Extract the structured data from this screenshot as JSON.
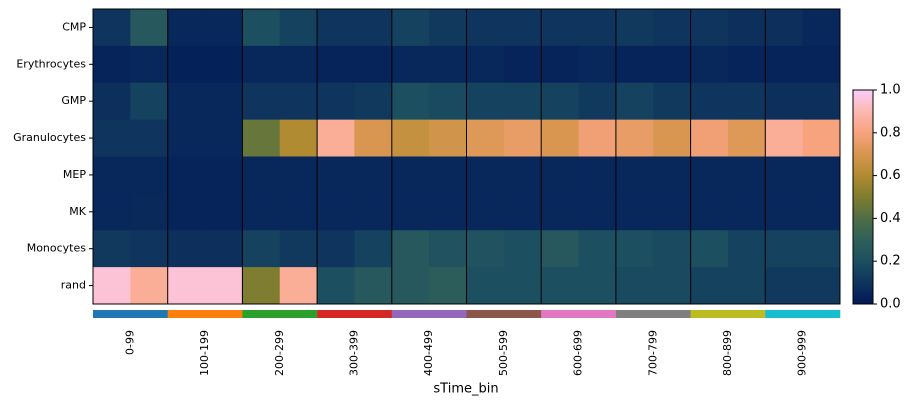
{
  "chart_data": {
    "type": "heatmap",
    "xlabel": "sTime_bin",
    "rows": [
      "CMP",
      "Erythrocytes",
      "GMP",
      "Granulocytes",
      "MEP",
      "MK",
      "Monocytes",
      "rand"
    ],
    "categories": [
      "0-99",
      "100-199",
      "200-299",
      "300-399",
      "400-499",
      "500-599",
      "600-699",
      "700-799",
      "800-899",
      "900-999"
    ],
    "category_colors": [
      "#1f77b4",
      "#ff7f0e",
      "#2ca02c",
      "#d62728",
      "#9467bd",
      "#8c564b",
      "#e377c2",
      "#7f7f7f",
      "#bcbd22",
      "#17becf"
    ],
    "values": [
      [
        0.1,
        0.25,
        0.05,
        0.05,
        0.2,
        0.15,
        0.1,
        0.1,
        0.15,
        0.12,
        0.1,
        0.1,
        0.1,
        0.1,
        0.12,
        0.1,
        0.1,
        0.08,
        0.08,
        0.05
      ],
      [
        0.04,
        0.05,
        0.03,
        0.03,
        0.05,
        0.05,
        0.04,
        0.04,
        0.05,
        0.05,
        0.05,
        0.04,
        0.04,
        0.05,
        0.04,
        0.04,
        0.05,
        0.04,
        0.04,
        0.04
      ],
      [
        0.08,
        0.15,
        0.05,
        0.05,
        0.1,
        0.1,
        0.1,
        0.12,
        0.2,
        0.18,
        0.15,
        0.15,
        0.15,
        0.12,
        0.15,
        0.12,
        0.1,
        0.1,
        0.08,
        0.08
      ],
      [
        0.1,
        0.1,
        0.05,
        0.05,
        0.45,
        0.6,
        0.85,
        0.7,
        0.65,
        0.68,
        0.72,
        0.75,
        0.7,
        0.78,
        0.75,
        0.7,
        0.78,
        0.72,
        0.85,
        0.8
      ],
      [
        0.05,
        0.05,
        0.04,
        0.04,
        0.05,
        0.05,
        0.05,
        0.05,
        0.05,
        0.05,
        0.05,
        0.05,
        0.05,
        0.05,
        0.05,
        0.05,
        0.05,
        0.05,
        0.05,
        0.05
      ],
      [
        0.05,
        0.06,
        0.04,
        0.04,
        0.05,
        0.05,
        0.05,
        0.05,
        0.05,
        0.05,
        0.05,
        0.05,
        0.05,
        0.05,
        0.05,
        0.05,
        0.05,
        0.05,
        0.05,
        0.05
      ],
      [
        0.12,
        0.1,
        0.08,
        0.08,
        0.15,
        0.12,
        0.1,
        0.15,
        0.25,
        0.22,
        0.22,
        0.2,
        0.25,
        0.2,
        0.2,
        0.18,
        0.2,
        0.15,
        0.15,
        0.15
      ],
      [
        0.95,
        0.85,
        0.95,
        0.95,
        0.5,
        0.85,
        0.2,
        0.25,
        0.25,
        0.28,
        0.2,
        0.2,
        0.2,
        0.2,
        0.18,
        0.18,
        0.15,
        0.15,
        0.12,
        0.12
      ]
    ],
    "colormap": [
      {
        "value": 0,
        "color": "#011959"
      },
      {
        "value": 0.2,
        "color": "#1c4f60"
      },
      {
        "value": 0.3,
        "color": "#30605a"
      },
      {
        "value": 0.4,
        "color": "#4f6e45"
      },
      {
        "value": 0.5,
        "color": "#7f7d2f"
      },
      {
        "value": 0.6,
        "color": "#b08b31"
      },
      {
        "value": 0.7,
        "color": "#d89650"
      },
      {
        "value": 0.8,
        "color": "#f7a37e"
      },
      {
        "value": 0.9,
        "color": "#fdb8b2"
      },
      {
        "value": 1,
        "color": "#faccfa"
      }
    ],
    "clim": [
      0,
      1
    ],
    "cticks": [
      {
        "value": 0,
        "label": "0.0"
      },
      {
        "value": 0.2,
        "label": "0.2"
      },
      {
        "value": 0.4,
        "label": "0.4"
      },
      {
        "value": 0.6,
        "label": "0.6"
      },
      {
        "value": 0.8,
        "label": "0.8"
      },
      {
        "value": 1,
        "label": "1.0"
      }
    ]
  }
}
